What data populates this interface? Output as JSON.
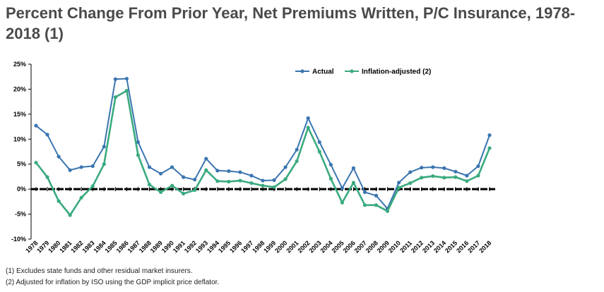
{
  "title": "Percent Change From Prior Year, Net Premiums Written, P/C Insurance, 1978-2018 (1)",
  "footnotes": [
    "(1) Excludes state funds and other residual market insurers.",
    "(2) Adjusted for inflation by ISO using the GDP implicit price deflator."
  ],
  "colors": {
    "actual": "#3b75b0",
    "inflation": "#3aaa7e",
    "zero_line": "#000000"
  },
  "chart_data": {
    "type": "line",
    "title": "Percent Change From Prior Year, Net Premiums Written, P/C Insurance, 1978-2018 (1)",
    "xlabel": "",
    "ylabel": "",
    "ylim": [
      -10,
      25
    ],
    "y_ticks": [
      25,
      20,
      15,
      10,
      5,
      0,
      -5,
      -10
    ],
    "y_tick_labels": [
      "25%",
      "20%",
      "15%",
      "10%",
      "5%",
      "0%",
      "-5%",
      "-10%"
    ],
    "legend_position": "top-right",
    "grid": false,
    "x": [
      "1978",
      "1979",
      "1980",
      "1981",
      "1982",
      "1983",
      "1984",
      "1985",
      "1986",
      "1987",
      "1988",
      "1989",
      "1990",
      "1991",
      "1992",
      "1993",
      "1994",
      "1995",
      "1996",
      "1997",
      "1998",
      "1999",
      "2000",
      "2001",
      "2002",
      "2003",
      "2004",
      "2005",
      "2006",
      "2007",
      "2008",
      "2009",
      "2010",
      "2011",
      "2012",
      "2013",
      "2014",
      "2015",
      "2016",
      "2017",
      "2018"
    ],
    "series": [
      {
        "name": "Actual",
        "values": [
          12.7,
          10.9,
          6.5,
          3.8,
          4.4,
          4.6,
          8.5,
          22.0,
          22.1,
          9.4,
          4.4,
          3.1,
          4.4,
          2.4,
          1.9,
          6.1,
          3.7,
          3.6,
          3.4,
          2.7,
          1.7,
          1.8,
          4.4,
          7.9,
          14.2,
          9.4,
          4.9,
          0.2,
          4.2,
          -0.6,
          -1.3,
          -3.9,
          1.3,
          3.4,
          4.3,
          4.4,
          4.2,
          3.5,
          2.7,
          4.6,
          10.8
        ]
      },
      {
        "name": "Inflation-adjusted (2)",
        "values": [
          5.3,
          2.4,
          -2.4,
          -5.2,
          -1.7,
          0.6,
          5.0,
          18.4,
          19.7,
          6.8,
          0.9,
          -0.6,
          0.7,
          -0.9,
          -0.2,
          3.8,
          1.6,
          1.5,
          1.7,
          1.2,
          0.7,
          0.4,
          2.0,
          5.6,
          12.3,
          7.5,
          2.1,
          -2.7,
          1.3,
          -3.2,
          -3.2,
          -4.4,
          0.3,
          1.2,
          2.3,
          2.6,
          2.3,
          2.4,
          1.6,
          2.7,
          8.2
        ]
      }
    ]
  }
}
